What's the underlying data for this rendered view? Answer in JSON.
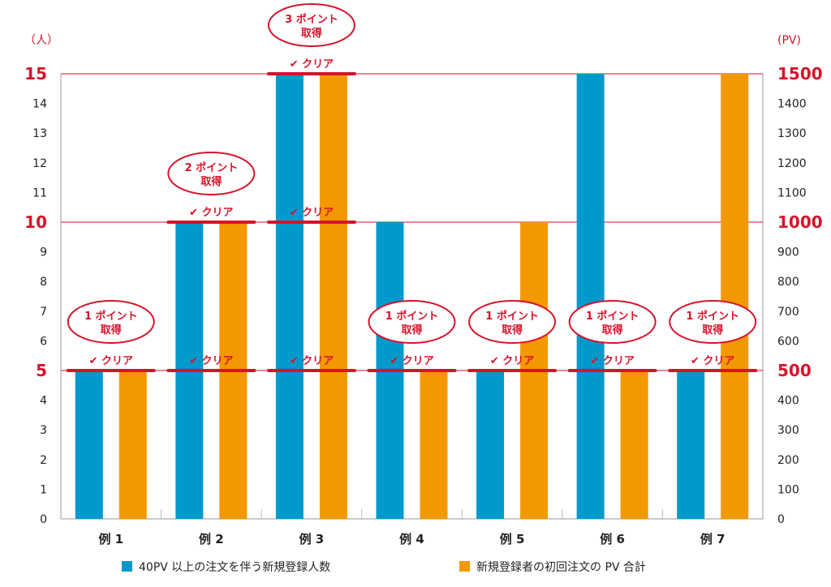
{
  "chart_data": {
    "type": "bar",
    "categories": [
      "例 1",
      "例 2",
      "例 3",
      "例 4",
      "例 5",
      "例 6",
      "例 7"
    ],
    "series": [
      {
        "name": "40PV 以上の注文を伴う新規登録人数",
        "color": "#0099cc",
        "axis": "left",
        "values": [
          5,
          10,
          15,
          10,
          5,
          15,
          5
        ]
      },
      {
        "name": "新規登録者の初回注文の PV 合計",
        "color": "#f39800",
        "axis": "right",
        "values": [
          500,
          1000,
          1500,
          500,
          1000,
          500,
          1500
        ]
      }
    ],
    "left_axis": {
      "unit": "（人）",
      "ylim": [
        0,
        15
      ],
      "ticks": [
        "0",
        "1",
        "2",
        "3",
        "4",
        "5",
        "6",
        "7",
        "8",
        "9",
        "10",
        "11",
        "12",
        "13",
        "14",
        "15"
      ],
      "major": [
        "5",
        "10",
        "15"
      ]
    },
    "right_axis": {
      "unit": "(PV)",
      "ylim": [
        0,
        1500
      ],
      "ticks": [
        "0",
        "100",
        "200",
        "300",
        "400",
        "500",
        "600",
        "700",
        "800",
        "900",
        "1000",
        "1100",
        "1200",
        "1300",
        "1400",
        "1500"
      ],
      "major": [
        "500",
        "1000",
        "1500"
      ]
    },
    "threshold_lines": [
      5,
      10,
      15
    ],
    "clear_label": "✔ クリア",
    "clears": [
      {
        "category": 0,
        "levels": [
          5
        ]
      },
      {
        "category": 1,
        "levels": [
          5,
          10
        ]
      },
      {
        "category": 2,
        "levels": [
          5,
          10,
          15
        ]
      },
      {
        "category": 3,
        "levels": [
          5
        ]
      },
      {
        "category": 4,
        "levels": [
          5
        ]
      },
      {
        "category": 5,
        "levels": [
          5
        ]
      },
      {
        "category": 6,
        "levels": [
          5
        ]
      }
    ],
    "badges": [
      {
        "category": 0,
        "level": 5,
        "lines": [
          "1 ポイント",
          "取得"
        ]
      },
      {
        "category": 1,
        "level": 10,
        "lines": [
          "2 ポイント",
          "取得"
        ]
      },
      {
        "category": 2,
        "level": 15,
        "lines": [
          "3 ポイント",
          "取得"
        ]
      },
      {
        "category": 3,
        "level": 5,
        "lines": [
          "1 ポイント",
          "取得"
        ]
      },
      {
        "category": 4,
        "level": 5,
        "lines": [
          "1 ポイント",
          "取得"
        ]
      },
      {
        "category": 5,
        "level": 5,
        "lines": [
          "1 ポイント",
          "取得"
        ]
      },
      {
        "category": 6,
        "level": 5,
        "lines": [
          "1 ポイント",
          "取得"
        ]
      }
    ],
    "grid": false,
    "legend_position": "bottom",
    "accent_color": "#d7132a"
  }
}
